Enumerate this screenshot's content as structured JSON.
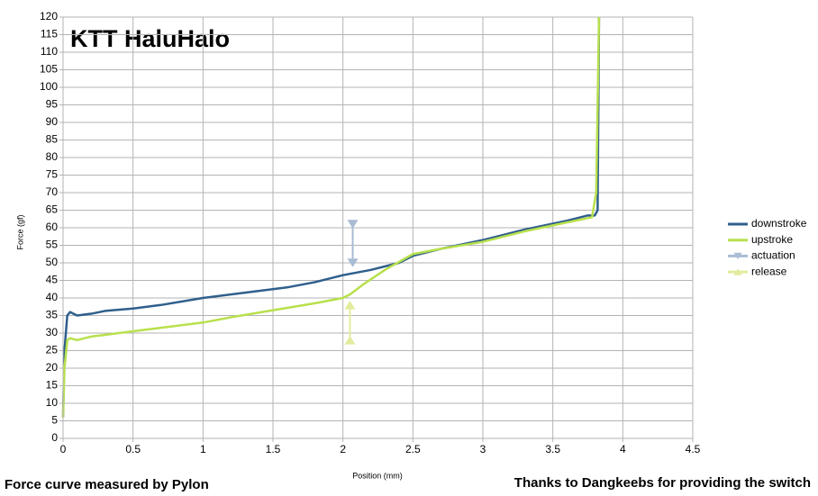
{
  "chart_data": {
    "type": "line",
    "title": "KTT HaluHalo",
    "x_label": "Position (mm)",
    "y_label": "Force (gf)",
    "footer_left": "Force curve measured by Pylon",
    "footer_right": "Thanks to Dangkeebs for providing the switch",
    "xlim": [
      0,
      4.5
    ],
    "ylim": [
      0,
      120
    ],
    "xticks": [
      0,
      0.5,
      1,
      1.5,
      2,
      2.5,
      3,
      3.5,
      4,
      4.5
    ],
    "yticks": [
      0,
      5,
      10,
      15,
      20,
      25,
      30,
      35,
      40,
      45,
      50,
      55,
      60,
      65,
      70,
      75,
      80,
      85,
      90,
      95,
      100,
      105,
      110,
      115,
      120
    ],
    "grid": true,
    "legend": "right",
    "series": [
      {
        "name": "downstroke",
        "color": "#2f5f8c",
        "x": [
          0,
          0.01,
          0.03,
          0.05,
          0.1,
          0.2,
          0.3,
          0.5,
          0.7,
          1.0,
          1.3,
          1.6,
          1.8,
          2.0,
          2.2,
          2.4,
          2.5,
          2.7,
          3.0,
          3.3,
          3.6,
          3.75,
          3.8,
          3.82,
          3.83
        ],
        "values": [
          6,
          25,
          35,
          36,
          35,
          35.5,
          36.3,
          37,
          38,
          40,
          41.5,
          43,
          44.5,
          46.5,
          48,
          50,
          52,
          54,
          56.5,
          59.5,
          62,
          63.5,
          63.5,
          65,
          120
        ]
      },
      {
        "name": "upstroke",
        "color": "#b8e04c",
        "x": [
          0,
          0.01,
          0.03,
          0.05,
          0.1,
          0.2,
          0.3,
          0.5,
          0.7,
          1.0,
          1.2,
          1.5,
          1.8,
          2.0,
          2.05,
          2.15,
          2.3,
          2.5,
          2.7,
          3.0,
          3.3,
          3.6,
          3.78,
          3.81,
          3.83
        ],
        "values": [
          6,
          20,
          28,
          28.5,
          28,
          29,
          29.5,
          30.5,
          31.5,
          33,
          34.5,
          36.5,
          38.5,
          40,
          41,
          44,
          48,
          52.5,
          54,
          56,
          59,
          61.5,
          63,
          70,
          120
        ]
      },
      {
        "name": "actuation",
        "color": "#a9bcd4",
        "marker": "down",
        "x": [
          2.07,
          2.07
        ],
        "values": [
          61,
          50
        ]
      },
      {
        "name": "release",
        "color": "#e3eb9e",
        "marker": "up",
        "x": [
          2.05,
          2.05
        ],
        "values": [
          28,
          38
        ]
      }
    ]
  }
}
